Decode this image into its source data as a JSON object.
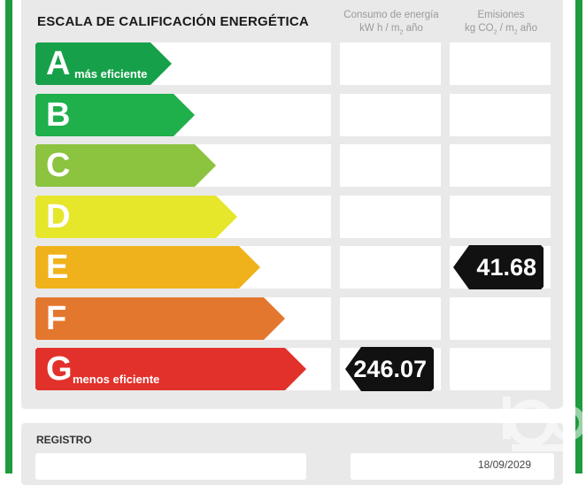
{
  "title": "ESCALA DE CALIFICACIÓN ENERGÉTICA",
  "columns": {
    "energy": {
      "line1": "Consumo de energía",
      "line2_a": "kW h / m",
      "line2_sub": "2",
      "line2_b": " año"
    },
    "emissions": {
      "line1": "Emisiones",
      "line2_a": "kg CO",
      "line2_sub": "2",
      "line2_mid": " / m",
      "line2_sub2": "2",
      "line2_b": " año"
    }
  },
  "ratings": [
    {
      "letter": "A",
      "note": "más eficiente",
      "color": "#17a04a"
    },
    {
      "letter": "B",
      "note": "",
      "color": "#1faf4b"
    },
    {
      "letter": "C",
      "note": "",
      "color": "#8cc33f"
    },
    {
      "letter": "D",
      "note": "",
      "color": "#e6e62a"
    },
    {
      "letter": "E",
      "note": "",
      "color": "#f0b21b"
    },
    {
      "letter": "F",
      "note": "",
      "color": "#e4772e"
    },
    {
      "letter": "G",
      "note": "menos eficiente",
      "color": "#e2312b"
    }
  ],
  "values": {
    "energy": {
      "rating": "G",
      "value": "246.07"
    },
    "emissions": {
      "rating": "E",
      "value": "41.68"
    }
  },
  "registro": {
    "label": "REGISTRO",
    "date": "18/09/2029"
  },
  "icons": {
    "watermark": "iad-logo-icon"
  }
}
